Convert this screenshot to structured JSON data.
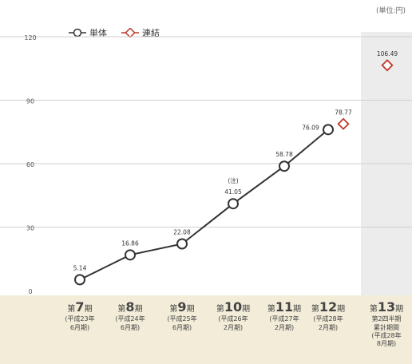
{
  "unit_label": "(単位:円)",
  "legend": {
    "single_label": "単体",
    "consolidated_label": "連結"
  },
  "colors": {
    "single": "#333333",
    "consolidated": "#c0392b",
    "grid": "#cfcfcf",
    "band": "#f2ecd8",
    "highlight": "#ececec"
  },
  "categories": [
    {
      "prefix": "第",
      "num": "7",
      "suffix": "期",
      "sub1": "(平成23年",
      "sub2": "6月期)"
    },
    {
      "prefix": "第",
      "num": "8",
      "suffix": "期",
      "sub1": "(平成24年",
      "sub2": "6月期)"
    },
    {
      "prefix": "第",
      "num": "9",
      "suffix": "期",
      "sub1": "(平成25年",
      "sub2": "6月期)"
    },
    {
      "prefix": "第",
      "num": "10",
      "suffix": "期",
      "sub1": "(平成26年",
      "sub2": "2月期)"
    },
    {
      "prefix": "第",
      "num": "11",
      "suffix": "期",
      "sub1": "(平成27年",
      "sub2": "2月期)"
    },
    {
      "prefix": "第",
      "num": "12",
      "suffix": "期",
      "sub1": "(平成28年",
      "sub2": "2月期)"
    },
    {
      "prefix": "第",
      "num": "13",
      "suffix": "期",
      "sub1": "第2四半期",
      "sub2": "累計期間",
      "sub3": "(平成28年",
      "sub4": "8月期)"
    }
  ],
  "chart_data": {
    "type": "line",
    "categories": [
      "第7期",
      "第8期",
      "第9期",
      "第10期",
      "第11期",
      "第12期",
      "第13期"
    ],
    "series": [
      {
        "name": "単体",
        "values": [
          5.14,
          16.86,
          22.08,
          41.05,
          58.78,
          76.09,
          null
        ]
      },
      {
        "name": "連結",
        "values": [
          null,
          null,
          null,
          null,
          null,
          78.77,
          106.49
        ]
      }
    ],
    "data_labels": {
      "single": [
        "5.14",
        "16.86",
        "22.08",
        "41.05",
        "58.78",
        "76.09"
      ],
      "consolidated": [
        "78.77",
        "106.49"
      ]
    },
    "annotation": "(注)",
    "ylim": [
      0,
      120
    ],
    "yticks": [
      0,
      30,
      60,
      90,
      120
    ],
    "grid": true,
    "legend_position": "top-left"
  }
}
